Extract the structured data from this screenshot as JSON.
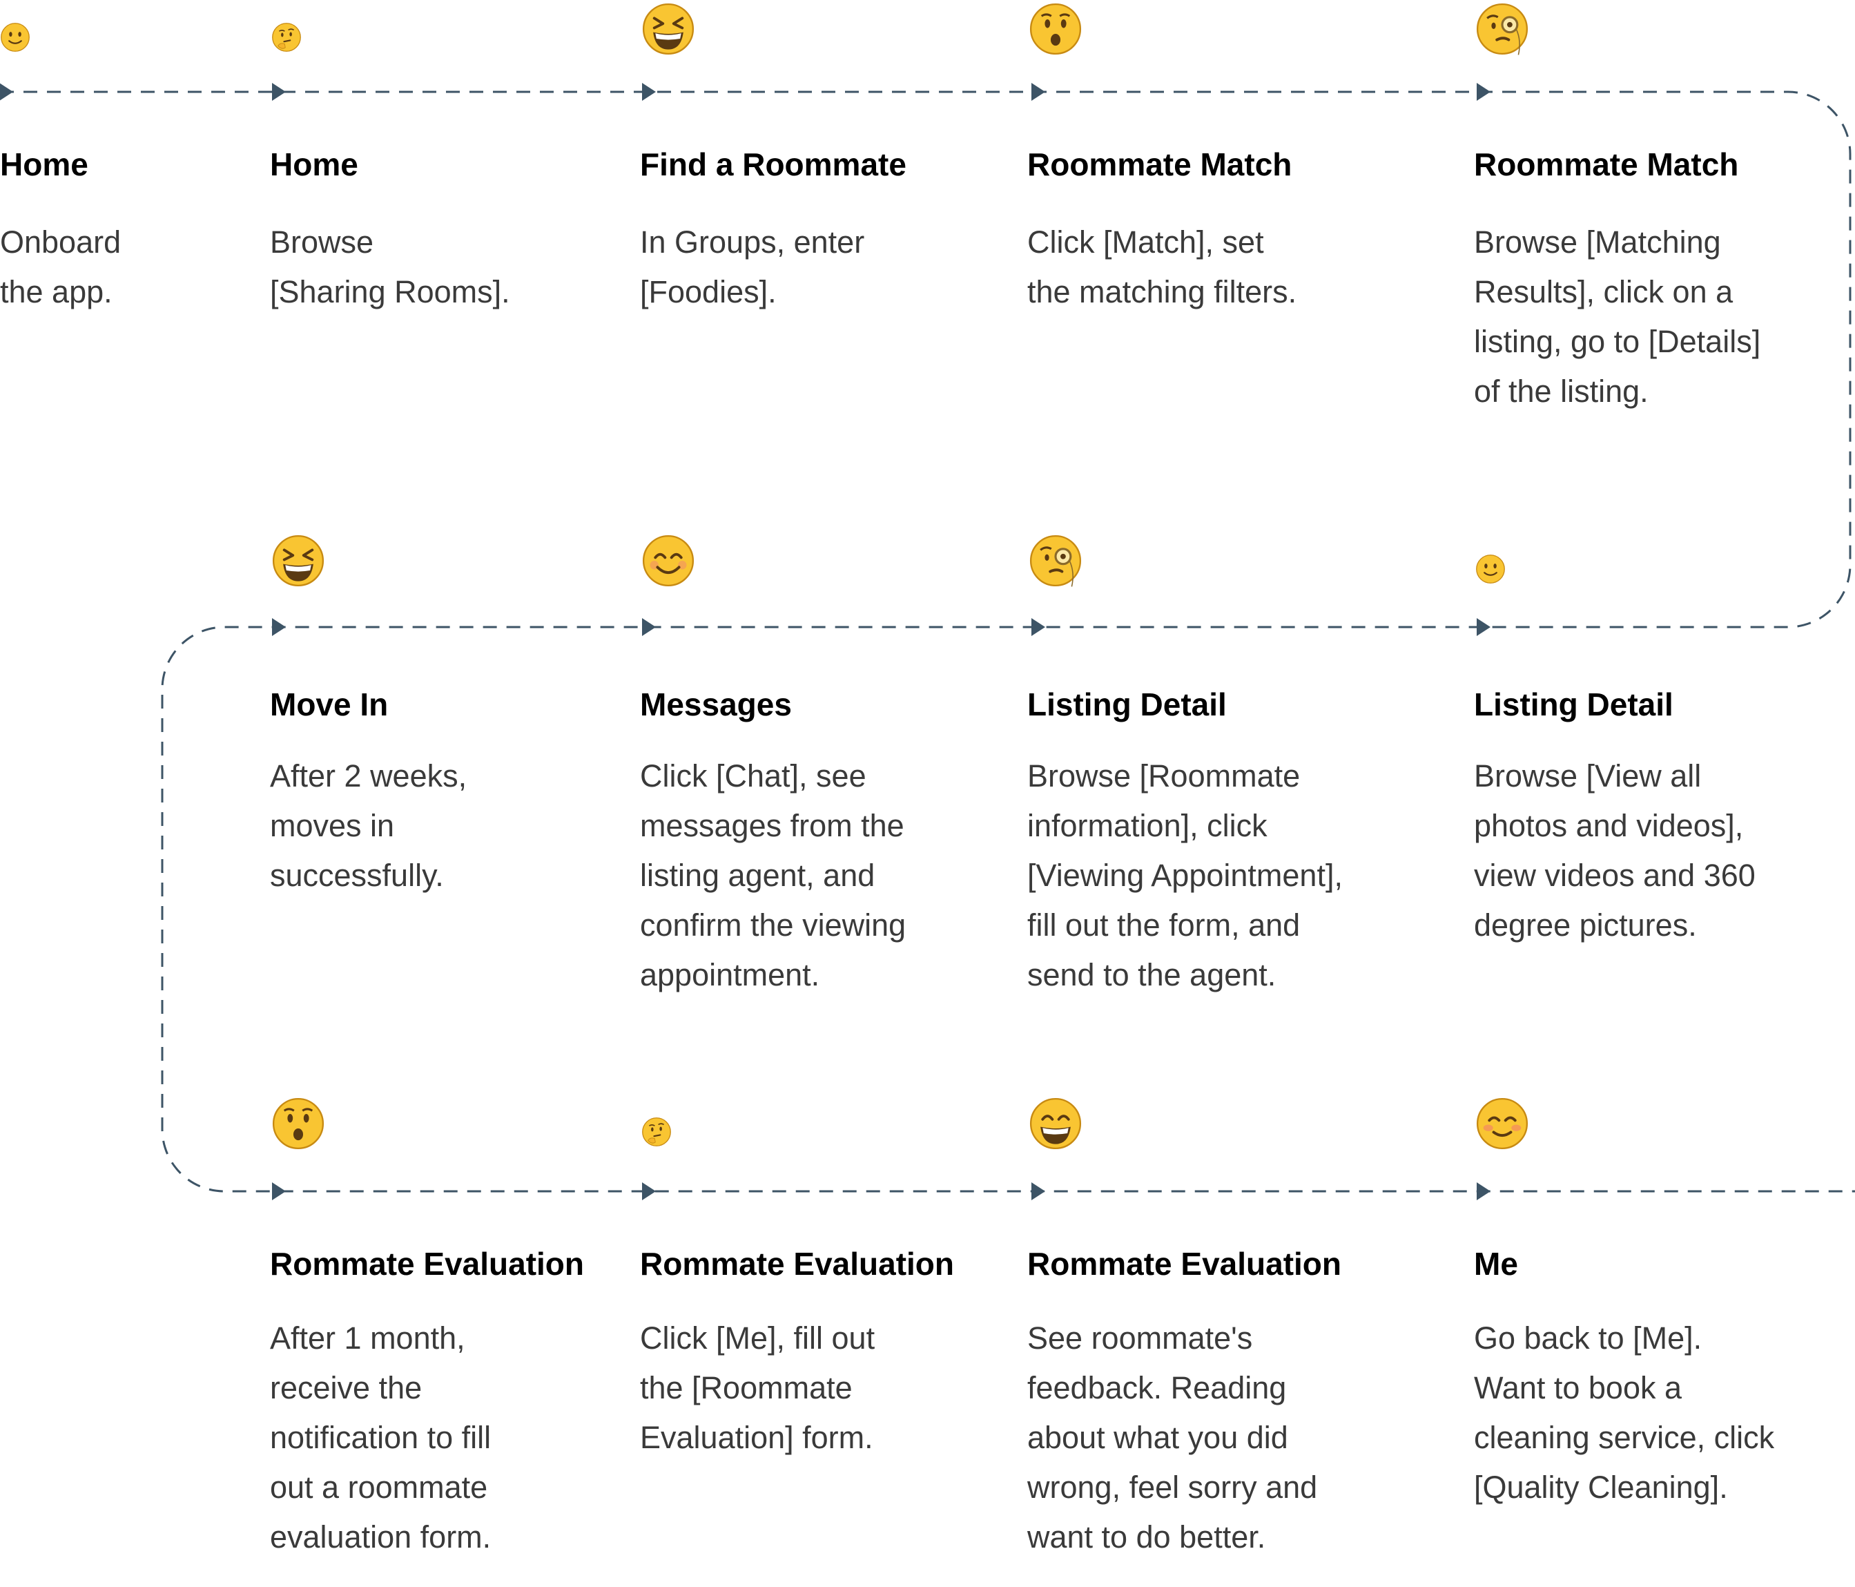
{
  "steps": [
    {
      "row": 0,
      "col": 0,
      "emotion": "slightly-smiling-face-icon",
      "title": "Home",
      "lines": [
        "Onboard",
        "the app."
      ]
    },
    {
      "row": 0,
      "col": 1,
      "emotion": "thinking-face-icon",
      "title": "Home",
      "lines": [
        "Browse",
        "[Sharing Rooms]."
      ]
    },
    {
      "row": 0,
      "col": 2,
      "emotion": "grinning-squinting-face-icon",
      "title": "Find a Roommate",
      "lines": [
        "In Groups, enter",
        "[Foodies]."
      ]
    },
    {
      "row": 0,
      "col": 3,
      "emotion": "hushed-face-icon",
      "title": "Roommate Match",
      "lines": [
        "Click [Match], set",
        "the matching filters."
      ]
    },
    {
      "row": 0,
      "col": 4,
      "emotion": "face-with-monocle-icon",
      "title": "Roommate Match",
      "lines": [
        "Browse [Matching",
        "Results], click on a",
        "listing, go to [Details]",
        "of the listing."
      ]
    },
    {
      "row": 1,
      "col": 4,
      "emotion": "slightly-smiling-face-icon",
      "title": "Listing Detail",
      "lines": [
        "Browse [View all",
        "photos and videos],",
        "view videos and 360",
        "degree pictures."
      ]
    },
    {
      "row": 1,
      "col": 3,
      "emotion": "face-with-monocle-icon",
      "title": "Listing Detail",
      "lines": [
        "Browse [Roommate",
        "information], click",
        "[Viewing Appointment],",
        "fill out the form, and",
        "send to the agent."
      ]
    },
    {
      "row": 1,
      "col": 2,
      "emotion": "smiling-face-with-smiling-eyes-icon",
      "title": "Messages",
      "lines": [
        "Click [Chat], see",
        "messages from the",
        "listing agent, and",
        "confirm the viewing",
        "appointment."
      ]
    },
    {
      "row": 1,
      "col": 1,
      "emotion": "grinning-squinting-face-icon",
      "title": "Move In",
      "lines": [
        "After 2 weeks,",
        "moves in",
        "successfully."
      ]
    },
    {
      "row": 2,
      "col": 1,
      "emotion": "hushed-face-icon",
      "title": "Rommate Evaluation",
      "lines": [
        "After 1 month,",
        "receive the",
        "notification to fill",
        "out a roommate",
        "evaluation form."
      ]
    },
    {
      "row": 2,
      "col": 2,
      "emotion": "thinking-face-icon",
      "title": "Rommate Evaluation",
      "lines": [
        "Click [Me], fill out",
        "the [Roommate",
        "Evaluation] form."
      ]
    },
    {
      "row": 2,
      "col": 3,
      "emotion": "beaming-face-icon",
      "title": "Rommate Evaluation",
      "lines": [
        "See roommate's",
        "feedback. Reading",
        "about what you did",
        "wrong, feel sorry and",
        "want to do better."
      ]
    },
    {
      "row": 2,
      "col": 4,
      "emotion": "smiling-face-icon",
      "title": "Me",
      "lines": [
        "Go back to [Me].",
        "Want to book a",
        "cleaning service, click",
        "[Quality Cleaning]."
      ]
    }
  ],
  "colors": {
    "line": "#3d5466",
    "emoji_fill": "#f9c532",
    "emoji_stroke": "#c78a12",
    "emoji_feature": "#5a3a12",
    "title": "#000000",
    "desc": "#3a3a3a"
  }
}
